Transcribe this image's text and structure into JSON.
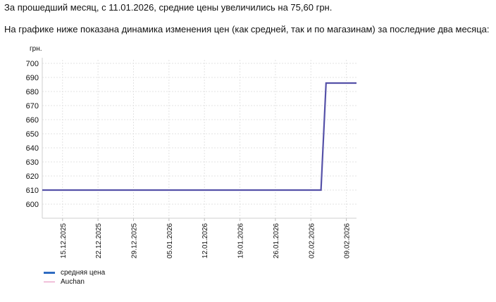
{
  "summary": {
    "text": "За прошедший месяц, с 11.01.2026, средние цены увеличились на 75,60 грн.",
    "chart_intro": "На графике ниже показана динамика изменения цен (как средней, так и по магазинам) за последние два месяца:"
  },
  "chart_data": {
    "type": "line",
    "ylabel": "грн.",
    "ylim": [
      595,
      705
    ],
    "yticks": [
      600,
      610,
      620,
      630,
      640,
      650,
      660,
      670,
      680,
      690,
      700
    ],
    "xlim": [
      "2025-12-11",
      "2026-02-11"
    ],
    "xticks": [
      "15.12.2025",
      "22.12.2025",
      "29.12.2025",
      "05.01.2026",
      "12.01.2026",
      "19.01.2026",
      "26.01.2026",
      "02.02.2026",
      "09.02.2026"
    ],
    "grid": true,
    "legend_position": "bottom-left",
    "series": [
      {
        "name": "средняя цена",
        "color": "#2f6cc1",
        "points": [
          {
            "x": "2025-12-11",
            "y": 610
          },
          {
            "x": "2026-02-04",
            "y": 610
          },
          {
            "x": "2026-02-05",
            "y": 686
          },
          {
            "x": "2026-02-11",
            "y": 686
          }
        ]
      },
      {
        "name": "Auchan",
        "color": "#e489b9",
        "points": [
          {
            "x": "2025-12-11",
            "y": 610
          },
          {
            "x": "2026-02-04",
            "y": 610
          },
          {
            "x": "2026-02-05",
            "y": 686
          },
          {
            "x": "2026-02-11",
            "y": 686
          }
        ]
      }
    ]
  }
}
